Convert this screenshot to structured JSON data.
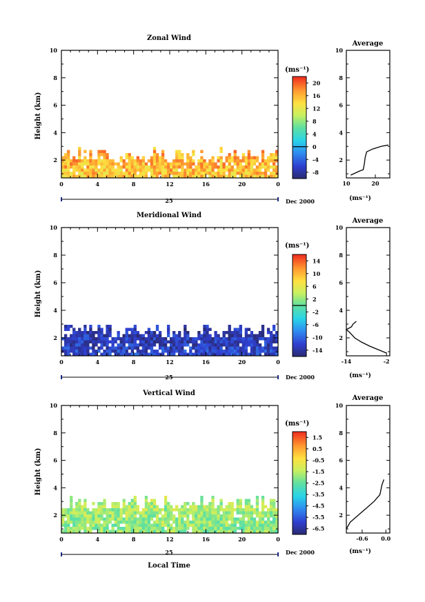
{
  "panels": [
    {
      "title": "Zonal Wind",
      "ylabel": "Height (km)",
      "date_label": "Dec 2000",
      "day_label": "25",
      "cbar_unit": "(ms⁻¹)",
      "avg_title": "Average",
      "avg_unit": "(ms⁻¹)"
    },
    {
      "title": "Meridional Wind",
      "ylabel": "Height (km)",
      "date_label": "Dec 2000",
      "day_label": "25",
      "cbar_unit": "(ms⁻¹)",
      "avg_title": "Average",
      "avg_unit": "(ms⁻¹)"
    },
    {
      "title": "Vertical Wind",
      "ylabel": "Height (km)",
      "date_label": "Dec 2000",
      "day_label": "25",
      "cbar_unit": "(ms⁻¹)",
      "avg_title": "Average",
      "avg_unit": "(ms⁻¹)"
    }
  ],
  "xlabel": "Local Time",
  "chart_data": [
    {
      "type": "heatmap",
      "title": "Zonal Wind",
      "xlabel": "",
      "ylabel": "Height (km)",
      "xlim": [
        0,
        24
      ],
      "ylim": [
        0.7,
        10
      ],
      "xticks": [
        "0",
        "4",
        "8",
        "12",
        "16",
        "20",
        "0"
      ],
      "yticks": [
        "2",
        "4",
        "6",
        "8",
        "10"
      ],
      "colorbar": {
        "unit": "(ms⁻¹)",
        "ticks": [
          "-8",
          "-4",
          "0",
          "4",
          "8",
          "12",
          "16",
          "20"
        ],
        "range": [
          -10,
          22
        ]
      },
      "data_top_km": 2.2,
      "average_profile": {
        "xlim": [
          10,
          25
        ],
        "xticks": [
          "10",
          "20"
        ],
        "ylim": [
          0.7,
          10
        ],
        "yticks": [
          "2",
          "4",
          "6",
          "8",
          "10"
        ],
        "x": [
          11.5,
          14.5,
          15.8,
          16.2,
          16.5,
          17.0,
          19.0,
          22.0,
          24.5
        ],
        "y": [
          0.9,
          1.2,
          1.3,
          1.7,
          2.2,
          2.6,
          2.8,
          3.0,
          3.1
        ]
      }
    },
    {
      "type": "heatmap",
      "title": "Meridional Wind",
      "xlabel": "",
      "ylabel": "Height (km)",
      "xlim": [
        0,
        24
      ],
      "ylim": [
        0.7,
        10
      ],
      "xticks": [
        "0",
        "4",
        "8",
        "12",
        "16",
        "20",
        "0"
      ],
      "yticks": [
        "2",
        "4",
        "6",
        "8",
        "10"
      ],
      "colorbar": {
        "unit": "(ms⁻¹)",
        "ticks": [
          "-14",
          "-10",
          "-6",
          "-2",
          "2",
          "6",
          "10",
          "14"
        ],
        "range": [
          -16,
          16
        ]
      },
      "data_top_km": 2.4,
      "average_profile": {
        "xlim": [
          -14,
          -1
        ],
        "xticks": [
          "-14",
          "-2"
        ],
        "ylim": [
          0.7,
          10
        ],
        "yticks": [
          "2",
          "4",
          "6",
          "8",
          "10"
        ],
        "x": [
          -2.0,
          -4.0,
          -7.0,
          -9.5,
          -11.5,
          -13.0,
          -14.0,
          -12.5,
          -12.0,
          -11.0
        ],
        "y": [
          0.9,
          1.1,
          1.4,
          1.7,
          2.0,
          2.4,
          2.6,
          2.8,
          3.0,
          3.2
        ]
      }
    },
    {
      "type": "heatmap",
      "title": "Vertical Wind",
      "xlabel": "Local Time",
      "ylabel": "Height (km)",
      "xlim": [
        0,
        24
      ],
      "ylim": [
        0.7,
        10
      ],
      "xticks": [
        "0",
        "4",
        "8",
        "12",
        "16",
        "20",
        "0"
      ],
      "yticks": [
        "2",
        "4",
        "6",
        "8",
        "10"
      ],
      "colorbar": {
        "unit": "(ms⁻¹)",
        "ticks": [
          "-6.5",
          "-5.5",
          "-4.5",
          "-3.5",
          "-2.5",
          "-1.5",
          "-0.5",
          "0.5",
          "1.5"
        ],
        "range": [
          -7,
          2
        ]
      },
      "data_top_km": 2.8,
      "average_profile": {
        "xlim": [
          -1.0,
          0.1
        ],
        "xticks": [
          "-0.6",
          "0.0"
        ],
        "ylim": [
          0.7,
          10
        ],
        "yticks": [
          "2",
          "4",
          "6",
          "8",
          "10"
        ],
        "x": [
          -1.0,
          -0.9,
          -0.7,
          -0.5,
          -0.3,
          -0.15,
          -0.1,
          -0.05
        ],
        "y": [
          1.0,
          1.5,
          2.0,
          2.5,
          3.0,
          3.5,
          4.2,
          4.6
        ]
      }
    }
  ]
}
